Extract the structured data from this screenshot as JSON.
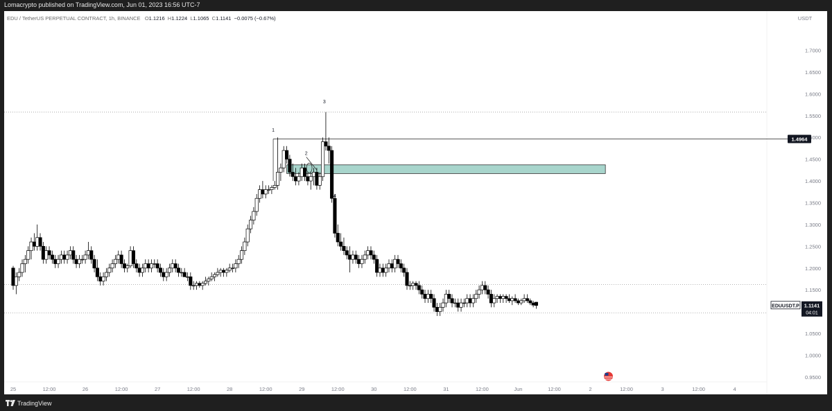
{
  "header": {
    "published": "Lomacrypto published on TradingView.com, Jun 01, 2023 16:56 UTC-7"
  },
  "legend": {
    "symbol": "EDU / TetherUS PERPETUAL CONTRACT, 1h, BINANCE",
    "o_label": "O",
    "o": "1.1216",
    "h_label": "H",
    "h": "1.1224",
    "l_label": "L",
    "l": "1.1065",
    "c_label": "C",
    "c": "1.1141",
    "change": "−0.0075 (−0.67%)"
  },
  "footer": {
    "brand": "TradingView"
  },
  "colors": {
    "bg": "#ffffff",
    "candle_up_fill": "#ffffff",
    "candle_down_fill": "#000000",
    "candle_border": "#000000",
    "zone_fill": "#a8d5cc",
    "zone_border": "#2e2e2e",
    "dotted_line": "#9a9a9a",
    "axis_text": "#787b86"
  },
  "chart_data": {
    "type": "candlestick",
    "symbol": "EDUUSDT.P",
    "timeframe": "1h",
    "axis_unit": "USDT",
    "y_ticks": [
      0.95,
      1.0,
      1.05,
      1.1,
      1.15,
      1.2,
      1.25,
      1.3,
      1.35,
      1.4,
      1.45,
      1.5,
      1.55,
      1.6,
      1.65,
      1.7
    ],
    "y_tick_labels": [
      "0.9500",
      "1.0000",
      "1.0500",
      "1.1000",
      "1.1500",
      "1.2000",
      "1.2500",
      "1.3000",
      "1.3500",
      "1.4000",
      "1.4500",
      "1.5000",
      "1.5500",
      "1.6000",
      "1.6500",
      "1.7000"
    ],
    "ylim": [
      0.91,
      1.79
    ],
    "x_ticks": [
      {
        "t": 0,
        "label": "25"
      },
      {
        "t": 12,
        "label": "12:00"
      },
      {
        "t": 24,
        "label": "26"
      },
      {
        "t": 36,
        "label": "12:00"
      },
      {
        "t": 48,
        "label": "27"
      },
      {
        "t": 60,
        "label": "12:00"
      },
      {
        "t": 72,
        "label": "28"
      },
      {
        "t": 84,
        "label": "12:00"
      },
      {
        "t": 96,
        "label": "29"
      },
      {
        "t": 108,
        "label": "12:00"
      },
      {
        "t": 120,
        "label": "30"
      },
      {
        "t": 132,
        "label": "12:00"
      },
      {
        "t": 144,
        "label": "31"
      },
      {
        "t": 156,
        "label": "12:00"
      },
      {
        "t": 168,
        "label": "Jun"
      },
      {
        "t": 180,
        "label": "12:00"
      },
      {
        "t": 192,
        "label": "2"
      },
      {
        "t": 204,
        "label": "12:00"
      },
      {
        "t": 216,
        "label": "3"
      },
      {
        "t": 228,
        "label": "12:00"
      },
      {
        "t": 240,
        "label": "4"
      }
    ],
    "xlim": [
      -3.0,
      250.7
    ],
    "price_label": {
      "name": "EDUUSDT.P",
      "value": "1.1141",
      "countdown": "04:01"
    },
    "level_label": {
      "value": "1.4964"
    },
    "horizontal_levels": [
      {
        "price": 1.558,
        "style": "dotted"
      },
      {
        "price": 1.4964,
        "style": "solid"
      },
      {
        "price": 1.162,
        "style": "dotted"
      },
      {
        "price": 1.097,
        "style": "dotted"
      }
    ],
    "zone": {
      "t_start": 91,
      "t_end": 197,
      "top": 1.437,
      "bottom": 1.417
    },
    "markers": [
      {
        "label": "1",
        "t": 86.5,
        "price": 1.513
      },
      {
        "label": "2",
        "t": 97.5,
        "price": 1.46
      },
      {
        "label": "3",
        "t": 103.5,
        "price": 1.578
      },
      {
        "label": "4",
        "t": 107,
        "price": 1.362
      }
    ],
    "ohlc": [
      [
        1.2,
        1.205,
        1.15,
        1.16
      ],
      [
        1.16,
        1.19,
        1.14,
        1.18
      ],
      [
        1.18,
        1.2,
        1.17,
        1.19
      ],
      [
        1.19,
        1.22,
        1.18,
        1.21
      ],
      [
        1.21,
        1.23,
        1.19,
        1.22
      ],
      [
        1.22,
        1.25,
        1.21,
        1.24
      ],
      [
        1.24,
        1.27,
        1.22,
        1.26
      ],
      [
        1.26,
        1.28,
        1.24,
        1.25
      ],
      [
        1.25,
        1.3,
        1.24,
        1.27
      ],
      [
        1.27,
        1.28,
        1.24,
        1.25
      ],
      [
        1.25,
        1.26,
        1.21,
        1.22
      ],
      [
        1.22,
        1.25,
        1.21,
        1.24
      ],
      [
        1.24,
        1.25,
        1.22,
        1.23
      ],
      [
        1.23,
        1.24,
        1.21,
        1.22
      ],
      [
        1.22,
        1.23,
        1.2,
        1.21
      ],
      [
        1.21,
        1.23,
        1.2,
        1.22
      ],
      [
        1.22,
        1.24,
        1.21,
        1.23
      ],
      [
        1.23,
        1.24,
        1.21,
        1.22
      ],
      [
        1.22,
        1.24,
        1.21,
        1.23
      ],
      [
        1.23,
        1.25,
        1.22,
        1.24
      ],
      [
        1.24,
        1.25,
        1.21,
        1.22
      ],
      [
        1.22,
        1.23,
        1.2,
        1.21
      ],
      [
        1.21,
        1.23,
        1.2,
        1.22
      ],
      [
        1.22,
        1.23,
        1.21,
        1.22
      ],
      [
        1.22,
        1.24,
        1.21,
        1.23
      ],
      [
        1.23,
        1.26,
        1.22,
        1.24
      ],
      [
        1.24,
        1.25,
        1.21,
        1.22
      ],
      [
        1.22,
        1.23,
        1.19,
        1.2
      ],
      [
        1.2,
        1.22,
        1.17,
        1.18
      ],
      [
        1.18,
        1.19,
        1.16,
        1.17
      ],
      [
        1.17,
        1.19,
        1.16,
        1.18
      ],
      [
        1.18,
        1.2,
        1.17,
        1.19
      ],
      [
        1.19,
        1.21,
        1.18,
        1.2
      ],
      [
        1.2,
        1.22,
        1.19,
        1.21
      ],
      [
        1.21,
        1.23,
        1.2,
        1.22
      ],
      [
        1.22,
        1.24,
        1.21,
        1.23
      ],
      [
        1.23,
        1.24,
        1.2,
        1.21
      ],
      [
        1.21,
        1.22,
        1.19,
        1.2
      ],
      [
        1.2,
        1.21,
        1.19,
        1.205
      ],
      [
        1.205,
        1.25,
        1.2,
        1.24
      ],
      [
        1.24,
        1.25,
        1.2,
        1.21
      ],
      [
        1.21,
        1.22,
        1.19,
        1.2
      ],
      [
        1.2,
        1.21,
        1.18,
        1.19
      ],
      [
        1.19,
        1.21,
        1.18,
        1.2
      ],
      [
        1.2,
        1.22,
        1.19,
        1.21
      ],
      [
        1.21,
        1.22,
        1.19,
        1.2
      ],
      [
        1.2,
        1.22,
        1.19,
        1.21
      ],
      [
        1.21,
        1.22,
        1.2,
        1.21
      ],
      [
        1.21,
        1.22,
        1.19,
        1.2
      ],
      [
        1.2,
        1.21,
        1.18,
        1.19
      ],
      [
        1.19,
        1.2,
        1.17,
        1.18
      ],
      [
        1.18,
        1.2,
        1.17,
        1.19
      ],
      [
        1.19,
        1.21,
        1.18,
        1.2
      ],
      [
        1.2,
        1.22,
        1.19,
        1.21
      ],
      [
        1.21,
        1.22,
        1.19,
        1.2
      ],
      [
        1.2,
        1.21,
        1.18,
        1.19
      ],
      [
        1.19,
        1.2,
        1.18,
        1.19
      ],
      [
        1.19,
        1.2,
        1.18,
        1.18
      ],
      [
        1.18,
        1.19,
        1.17,
        1.18
      ],
      [
        1.18,
        1.19,
        1.15,
        1.16
      ],
      [
        1.16,
        1.17,
        1.15,
        1.16
      ],
      [
        1.16,
        1.17,
        1.15,
        1.165
      ],
      [
        1.165,
        1.17,
        1.155,
        1.16
      ],
      [
        1.16,
        1.17,
        1.15,
        1.165
      ],
      [
        1.165,
        1.18,
        1.16,
        1.17
      ],
      [
        1.17,
        1.18,
        1.16,
        1.175
      ],
      [
        1.175,
        1.19,
        1.17,
        1.18
      ],
      [
        1.18,
        1.19,
        1.17,
        1.185
      ],
      [
        1.185,
        1.2,
        1.18,
        1.19
      ],
      [
        1.19,
        1.2,
        1.18,
        1.195
      ],
      [
        1.195,
        1.2,
        1.18,
        1.19
      ],
      [
        1.19,
        1.2,
        1.18,
        1.195
      ],
      [
        1.195,
        1.21,
        1.19,
        1.2
      ],
      [
        1.2,
        1.21,
        1.19,
        1.2
      ],
      [
        1.2,
        1.22,
        1.19,
        1.21
      ],
      [
        1.21,
        1.23,
        1.2,
        1.22
      ],
      [
        1.22,
        1.25,
        1.21,
        1.24
      ],
      [
        1.24,
        1.27,
        1.23,
        1.26
      ],
      [
        1.26,
        1.3,
        1.25,
        1.29
      ],
      [
        1.29,
        1.32,
        1.28,
        1.31
      ],
      [
        1.31,
        1.34,
        1.3,
        1.33
      ],
      [
        1.33,
        1.37,
        1.32,
        1.36
      ],
      [
        1.36,
        1.39,
        1.35,
        1.38
      ],
      [
        1.38,
        1.4,
        1.36,
        1.37
      ],
      [
        1.37,
        1.39,
        1.36,
        1.38
      ],
      [
        1.38,
        1.39,
        1.37,
        1.38
      ],
      [
        1.38,
        1.39,
        1.37,
        1.385
      ],
      [
        1.385,
        1.4,
        1.38,
        1.39
      ],
      [
        1.39,
        1.5,
        1.38,
        1.42
      ],
      [
        1.42,
        1.44,
        1.4,
        1.43
      ],
      [
        1.43,
        1.48,
        1.42,
        1.47
      ],
      [
        1.47,
        1.48,
        1.44,
        1.45
      ],
      [
        1.45,
        1.46,
        1.41,
        1.42
      ],
      [
        1.42,
        1.44,
        1.4,
        1.41
      ],
      [
        1.41,
        1.43,
        1.39,
        1.4
      ],
      [
        1.4,
        1.42,
        1.39,
        1.41
      ],
      [
        1.41,
        1.44,
        1.4,
        1.43
      ],
      [
        1.43,
        1.44,
        1.4,
        1.41
      ],
      [
        1.41,
        1.42,
        1.39,
        1.4
      ],
      [
        1.4,
        1.42,
        1.38,
        1.41
      ],
      [
        1.41,
        1.43,
        1.39,
        1.42
      ],
      [
        1.42,
        1.43,
        1.38,
        1.39
      ],
      [
        1.39,
        1.42,
        1.38,
        1.41
      ],
      [
        1.41,
        1.5,
        1.4,
        1.49
      ],
      [
        1.49,
        1.558,
        1.47,
        1.48
      ],
      [
        1.48,
        1.5,
        1.44,
        1.47
      ],
      [
        1.47,
        1.48,
        1.35,
        1.36
      ],
      [
        1.36,
        1.37,
        1.27,
        1.28
      ],
      [
        1.28,
        1.3,
        1.25,
        1.26
      ],
      [
        1.26,
        1.28,
        1.24,
        1.25
      ],
      [
        1.25,
        1.27,
        1.23,
        1.24
      ],
      [
        1.24,
        1.25,
        1.22,
        1.23
      ],
      [
        1.23,
        1.25,
        1.19,
        1.22
      ],
      [
        1.22,
        1.24,
        1.21,
        1.23
      ],
      [
        1.23,
        1.24,
        1.21,
        1.22
      ],
      [
        1.22,
        1.23,
        1.2,
        1.21
      ],
      [
        1.21,
        1.23,
        1.2,
        1.22
      ],
      [
        1.22,
        1.24,
        1.21,
        1.23
      ],
      [
        1.23,
        1.25,
        1.22,
        1.24
      ],
      [
        1.24,
        1.25,
        1.22,
        1.23
      ],
      [
        1.23,
        1.24,
        1.21,
        1.22
      ],
      [
        1.22,
        1.23,
        1.18,
        1.19
      ],
      [
        1.19,
        1.21,
        1.18,
        1.2
      ],
      [
        1.2,
        1.21,
        1.18,
        1.19
      ],
      [
        1.19,
        1.21,
        1.18,
        1.2
      ],
      [
        1.2,
        1.22,
        1.19,
        1.21
      ],
      [
        1.21,
        1.22,
        1.19,
        1.2
      ],
      [
        1.2,
        1.23,
        1.19,
        1.22
      ],
      [
        1.22,
        1.23,
        1.2,
        1.21
      ],
      [
        1.21,
        1.22,
        1.19,
        1.2
      ],
      [
        1.2,
        1.21,
        1.18,
        1.19
      ],
      [
        1.19,
        1.2,
        1.15,
        1.16
      ],
      [
        1.16,
        1.17,
        1.15,
        1.16
      ],
      [
        1.16,
        1.17,
        1.15,
        1.165
      ],
      [
        1.165,
        1.17,
        1.15,
        1.16
      ],
      [
        1.16,
        1.17,
        1.14,
        1.15
      ],
      [
        1.15,
        1.16,
        1.13,
        1.14
      ],
      [
        1.14,
        1.15,
        1.12,
        1.13
      ],
      [
        1.13,
        1.15,
        1.12,
        1.14
      ],
      [
        1.14,
        1.15,
        1.12,
        1.13
      ],
      [
        1.13,
        1.14,
        1.1,
        1.11
      ],
      [
        1.11,
        1.12,
        1.09,
        1.1
      ],
      [
        1.1,
        1.12,
        1.09,
        1.11
      ],
      [
        1.11,
        1.13,
        1.1,
        1.12
      ],
      [
        1.12,
        1.15,
        1.11,
        1.14
      ],
      [
        1.14,
        1.15,
        1.12,
        1.13
      ],
      [
        1.13,
        1.14,
        1.11,
        1.12
      ],
      [
        1.12,
        1.13,
        1.11,
        1.12
      ],
      [
        1.12,
        1.13,
        1.1,
        1.11
      ],
      [
        1.11,
        1.13,
        1.1,
        1.12
      ],
      [
        1.12,
        1.13,
        1.11,
        1.12
      ],
      [
        1.12,
        1.14,
        1.11,
        1.13
      ],
      [
        1.13,
        1.14,
        1.11,
        1.12
      ],
      [
        1.12,
        1.14,
        1.11,
        1.13
      ],
      [
        1.13,
        1.15,
        1.12,
        1.14
      ],
      [
        1.14,
        1.16,
        1.13,
        1.15
      ],
      [
        1.15,
        1.17,
        1.14,
        1.16
      ],
      [
        1.16,
        1.17,
        1.14,
        1.15
      ],
      [
        1.15,
        1.16,
        1.13,
        1.14
      ],
      [
        1.14,
        1.15,
        1.11,
        1.12
      ],
      [
        1.12,
        1.14,
        1.11,
        1.13
      ],
      [
        1.13,
        1.14,
        1.12,
        1.135
      ],
      [
        1.135,
        1.14,
        1.12,
        1.13
      ],
      [
        1.13,
        1.14,
        1.12,
        1.135
      ],
      [
        1.135,
        1.14,
        1.12,
        1.13
      ],
      [
        1.13,
        1.14,
        1.12,
        1.125
      ],
      [
        1.125,
        1.135,
        1.115,
        1.13
      ],
      [
        1.13,
        1.14,
        1.12,
        1.125
      ],
      [
        1.125,
        1.13,
        1.115,
        1.12
      ],
      [
        1.12,
        1.13,
        1.115,
        1.125
      ],
      [
        1.125,
        1.14,
        1.12,
        1.13
      ],
      [
        1.13,
        1.14,
        1.12,
        1.125
      ],
      [
        1.125,
        1.13,
        1.115,
        1.12
      ],
      [
        1.12,
        1.125,
        1.11,
        1.115
      ],
      [
        1.1216,
        1.1224,
        1.1065,
        1.1141
      ]
    ]
  }
}
